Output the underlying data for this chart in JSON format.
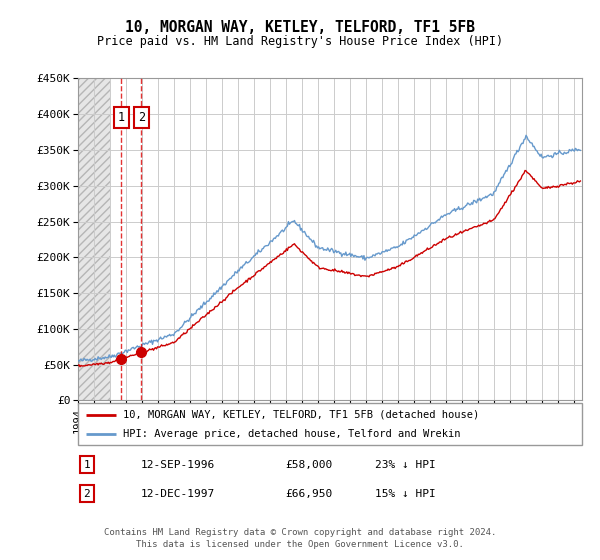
{
  "title": "10, MORGAN WAY, KETLEY, TELFORD, TF1 5FB",
  "subtitle": "Price paid vs. HM Land Registry's House Price Index (HPI)",
  "ylabel_ticks": [
    "£0",
    "£50K",
    "£100K",
    "£150K",
    "£200K",
    "£250K",
    "£300K",
    "£350K",
    "£400K",
    "£450K"
  ],
  "ytick_values": [
    0,
    50000,
    100000,
    150000,
    200000,
    250000,
    300000,
    350000,
    400000,
    450000
  ],
  "ylim": [
    0,
    450000
  ],
  "xlim_start": 1994.0,
  "xlim_end": 2025.5,
  "legend_line1": "10, MORGAN WAY, KETLEY, TELFORD, TF1 5FB (detached house)",
  "legend_line2": "HPI: Average price, detached house, Telford and Wrekin",
  "transaction1_label": "1",
  "transaction1_date": "12-SEP-1996",
  "transaction1_price": "£58,000",
  "transaction1_hpi": "23% ↓ HPI",
  "transaction2_label": "2",
  "transaction2_date": "12-DEC-1997",
  "transaction2_price": "£66,950",
  "transaction2_hpi": "15% ↓ HPI",
  "footer": "Contains HM Land Registry data © Crown copyright and database right 2024.\nThis data is licensed under the Open Government Licence v3.0.",
  "red_line_color": "#cc0000",
  "blue_line_color": "#6699cc",
  "transaction1_x": 1996.7,
  "transaction1_y": 58000,
  "transaction2_x": 1997.95,
  "transaction2_y": 66950,
  "grid_color": "#cccccc",
  "hatch_end_x": 1996.0
}
